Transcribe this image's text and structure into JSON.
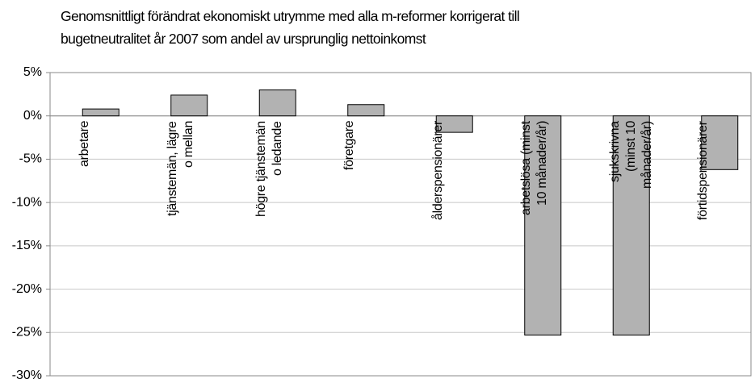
{
  "chart_data": {
    "type": "bar",
    "title": "Genomsnittligt förändrat ekonomiskt utrymme med alla m-reformer korrigerat till\nbugetneutralitet år 2007 som andel av ursprunglig nettoinkomst",
    "categories": [
      "arbetare",
      "tjänstemän, lägre\no mellan",
      "högre tjänstemän\no ledande",
      "företgare",
      "ålderspensionärer",
      "arbetslösa (minst\n10 månader/år)",
      "sjukskrivna\n(minst 10\nmånader/år)",
      "förtidspensionärer"
    ],
    "values": [
      0.8,
      2.4,
      3.0,
      1.3,
      -1.9,
      -25.3,
      -25.3,
      -6.2
    ],
    "color": "#b2b2b2",
    "ylim": [
      -30,
      5
    ],
    "yticks": [
      {
        "value": -30,
        "label": "-30%"
      },
      {
        "value": -25,
        "label": "-25%"
      },
      {
        "value": -20,
        "label": "-20%"
      },
      {
        "value": -15,
        "label": "-15%"
      },
      {
        "value": -10,
        "label": "-10%"
      },
      {
        "value": -5,
        "label": "-5%"
      },
      {
        "value": 0,
        "label": "0%"
      },
      {
        "value": 5,
        "label": "5%"
      }
    ],
    "grid": true
  }
}
